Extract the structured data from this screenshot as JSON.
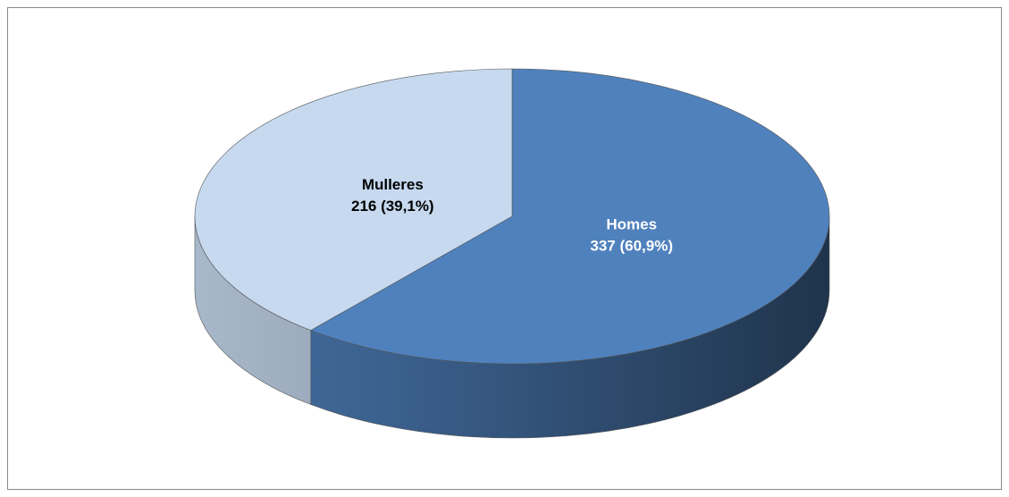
{
  "chart_data": {
    "type": "pie",
    "categories": [
      "Homes",
      "Mulleres"
    ],
    "values": [
      337,
      216
    ],
    "value_labels": [
      "337 (60,9%)",
      "216 (39,1%)"
    ],
    "colors": [
      "#4f81bd",
      "#c6d9ef"
    ],
    "label_colors": [
      "#ffffff",
      "#000000"
    ]
  }
}
